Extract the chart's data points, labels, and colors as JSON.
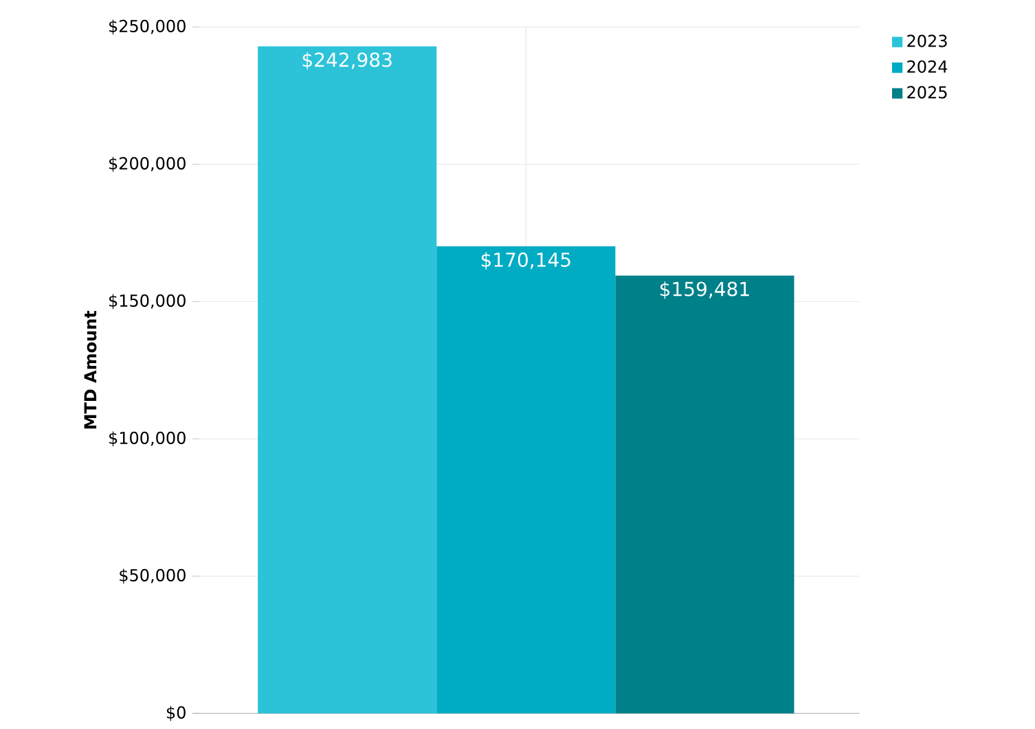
{
  "chart_data": {
    "type": "bar",
    "ylabel": "MTD Amount",
    "categories": [
      null
    ],
    "series": [
      {
        "name": "2023",
        "color": "#2cc3d9",
        "values": [
          242983
        ],
        "value_labels": [
          "$242,983"
        ]
      },
      {
        "name": "2024",
        "color": "#00abc4",
        "values": [
          170145
        ],
        "value_labels": [
          "$170,145"
        ]
      },
      {
        "name": "2025",
        "color": "#008089",
        "values": [
          159481
        ],
        "value_labels": [
          "$159,481"
        ]
      }
    ],
    "ylim": [
      0,
      250000
    ],
    "yticks": [
      {
        "value": 0,
        "label": "$0"
      },
      {
        "value": 50000,
        "label": "$50,000"
      },
      {
        "value": 100000,
        "label": "$100,000"
      },
      {
        "value": 150000,
        "label": "$150,000"
      },
      {
        "value": 200000,
        "label": "$200,000"
      },
      {
        "value": 250000,
        "label": "$250,000"
      }
    ],
    "grid": true,
    "legend": "top right"
  }
}
